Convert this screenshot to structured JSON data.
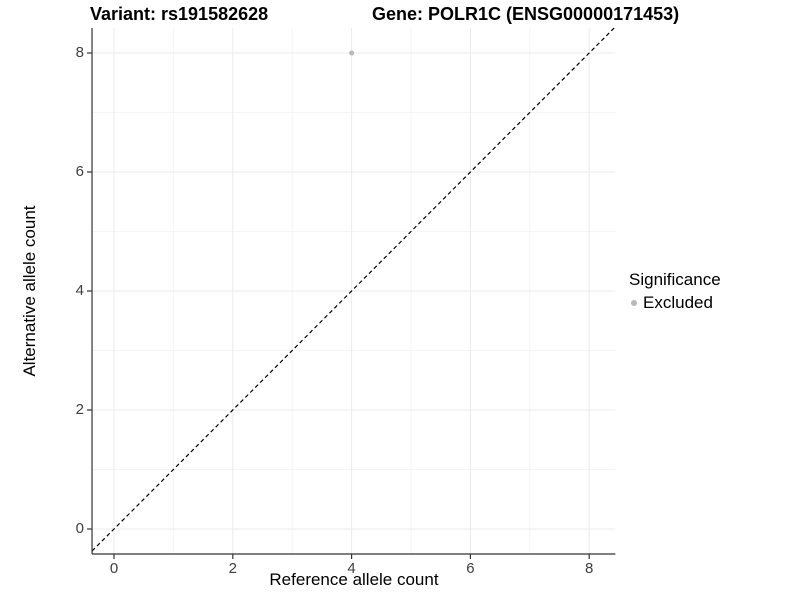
{
  "chart_data": {
    "type": "scatter",
    "title_left": "Variant: rs191582628",
    "title_right": "Gene: POLR1C (ENSG00000171453)",
    "xlabel": "Reference allele count",
    "ylabel": "Alternative allele count",
    "xlim": [
      -0.37,
      8.44
    ],
    "ylim": [
      -0.42,
      8.42
    ],
    "x_ticks": [
      0,
      2,
      4,
      6,
      8
    ],
    "y_ticks": [
      0,
      2,
      4,
      6,
      8
    ],
    "x_minor_ticks": [
      1,
      3,
      5,
      7
    ],
    "y_minor_ticks": [
      1,
      3,
      5,
      7
    ],
    "grid": "major and minor, light gray on white",
    "identity_line": {
      "type": "dashed",
      "equation": "y = x"
    },
    "series": [
      {
        "name": "Excluded",
        "color": "#b8b8b8",
        "points": [
          [
            4,
            8
          ]
        ]
      }
    ],
    "legend": {
      "title": "Significance",
      "position": "right",
      "items": [
        {
          "label": "Excluded",
          "color": "#b8b8b8"
        }
      ]
    },
    "colors": {
      "background": "#ffffff",
      "grid_major": "#ebebeb",
      "grid_minor": "#f5f5f5",
      "axis_line": "#333333",
      "identity_line": "#000000",
      "tick_label": "#404040",
      "point": "#b8b8b8"
    }
  }
}
